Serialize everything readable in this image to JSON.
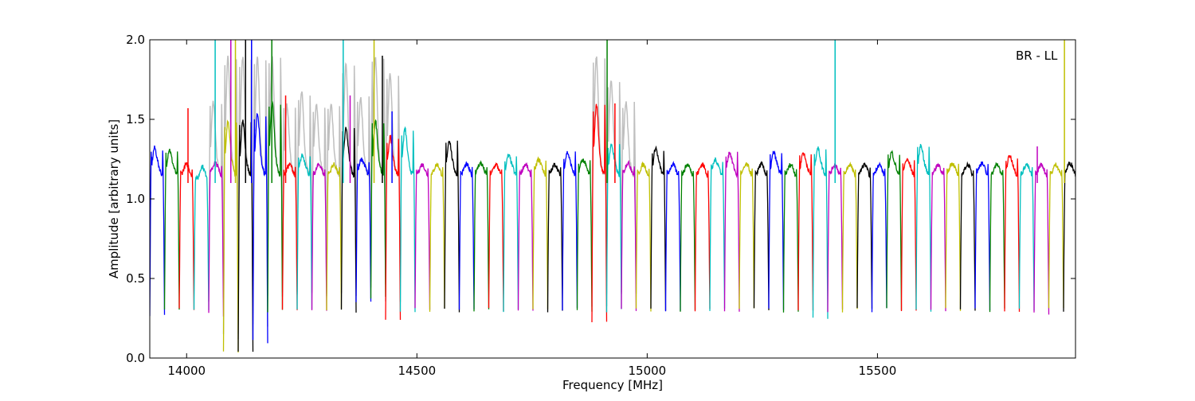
{
  "chart_data": {
    "type": "line",
    "annotation": "BR - LL",
    "xlabel": "Frequency [MHz]",
    "ylabel": "Amplitude [arbitrary units]",
    "xlim": [
      13920,
      15930
    ],
    "ylim": [
      0.0,
      2.0
    ],
    "x_ticks": [
      14000,
      14500,
      15000,
      15500
    ],
    "x_tick_labels": [
      "14000",
      "14500",
      "15000",
      "15500"
    ],
    "y_ticks": [
      0.0,
      0.5,
      1.0,
      1.5,
      2.0
    ],
    "y_tick_labels": [
      "0.0",
      "0.5",
      "1.0",
      "1.5",
      "2.0"
    ],
    "grid": false,
    "series_colors": [
      "#0000ff",
      "#008000",
      "#ff0000",
      "#00bfbf",
      "#bf00bf",
      "#bfbf00",
      "#000000"
    ],
    "background_color": "#bfbfbf",
    "channel_width_mhz": 32,
    "channel_starts": [
      13920,
      13952,
      13984,
      14016,
      14048,
      14080,
      14112,
      14144,
      14176,
      14208,
      14240,
      14272,
      14304,
      14336,
      14368,
      14400,
      14432,
      14464,
      14496,
      14528,
      14560,
      14592,
      14624,
      14656,
      14688,
      14720,
      14752,
      14784,
      14816,
      14848,
      14880,
      14912,
      14944,
      14976,
      15008,
      15040,
      15072,
      15104,
      15136,
      15168,
      15200,
      15232,
      15264,
      15296,
      15328,
      15360,
      15392,
      15424,
      15456,
      15488,
      15520,
      15552,
      15584,
      15616,
      15648,
      15680,
      15712,
      15744,
      15776,
      15808,
      15840,
      15872,
      15904
    ],
    "channel_peaks": [
      1.33,
      1.32,
      1.2,
      1.15,
      1.22,
      1.5,
      1.5,
      1.55,
      1.62,
      1.2,
      1.28,
      1.2,
      1.2,
      1.45,
      1.25,
      1.5,
      1.4,
      1.45,
      1.2,
      1.2,
      1.38,
      1.2,
      1.22,
      1.2,
      1.28,
      1.2,
      1.25,
      1.2,
      1.3,
      1.25,
      1.6,
      1.35,
      1.22,
      1.2,
      1.33,
      1.2,
      1.2,
      1.2,
      1.25,
      1.3,
      1.2,
      1.2,
      1.3,
      1.2,
      1.3,
      1.33,
      1.2,
      1.2,
      1.2,
      1.2,
      1.3,
      1.25,
      1.35,
      1.2,
      1.22,
      1.2,
      1.22,
      1.2,
      1.28,
      1.2,
      1.2,
      1.2,
      1.22
    ],
    "channel_mins": [
      0.26,
      0.3,
      0.3,
      0.3,
      0.27,
      0.04,
      0.03,
      0.1,
      0.3,
      0.3,
      0.3,
      0.3,
      0.3,
      0.3,
      0.35,
      0.37,
      0.25,
      0.3,
      0.3,
      0.3,
      0.3,
      0.3,
      0.3,
      0.3,
      0.3,
      0.3,
      0.3,
      0.3,
      0.3,
      0.3,
      0.22,
      0.3,
      0.3,
      0.3,
      0.3,
      0.3,
      0.3,
      0.3,
      0.3,
      0.3,
      0.3,
      0.3,
      0.3,
      0.3,
      0.3,
      0.25,
      0.3,
      0.3,
      0.3,
      0.3,
      0.3,
      0.3,
      0.3,
      0.3,
      0.3,
      0.3,
      0.3,
      0.3,
      0.3,
      0.3,
      0.28,
      0.3,
      0.3
    ],
    "rfi_spikes": [
      {
        "x": 14003,
        "y": 1.57
      },
      {
        "x": 14062,
        "y": 2.0
      },
      {
        "x": 14096,
        "y": 2.0
      },
      {
        "x": 14106,
        "y": 2.0
      },
      {
        "x": 14128,
        "y": 2.0
      },
      {
        "x": 14141,
        "y": 2.0
      },
      {
        "x": 14185,
        "y": 2.0
      },
      {
        "x": 14215,
        "y": 1.65
      },
      {
        "x": 14340,
        "y": 2.0
      },
      {
        "x": 14355,
        "y": 1.65
      },
      {
        "x": 14407,
        "y": 2.0
      },
      {
        "x": 14425,
        "y": 1.9
      },
      {
        "x": 14446,
        "y": 1.55
      },
      {
        "x": 14913,
        "y": 2.0
      },
      {
        "x": 14930,
        "y": 1.6
      },
      {
        "x": 15408,
        "y": 2.0
      },
      {
        "x": 15847,
        "y": 1.33
      },
      {
        "x": 15906,
        "y": 2.0
      }
    ]
  }
}
